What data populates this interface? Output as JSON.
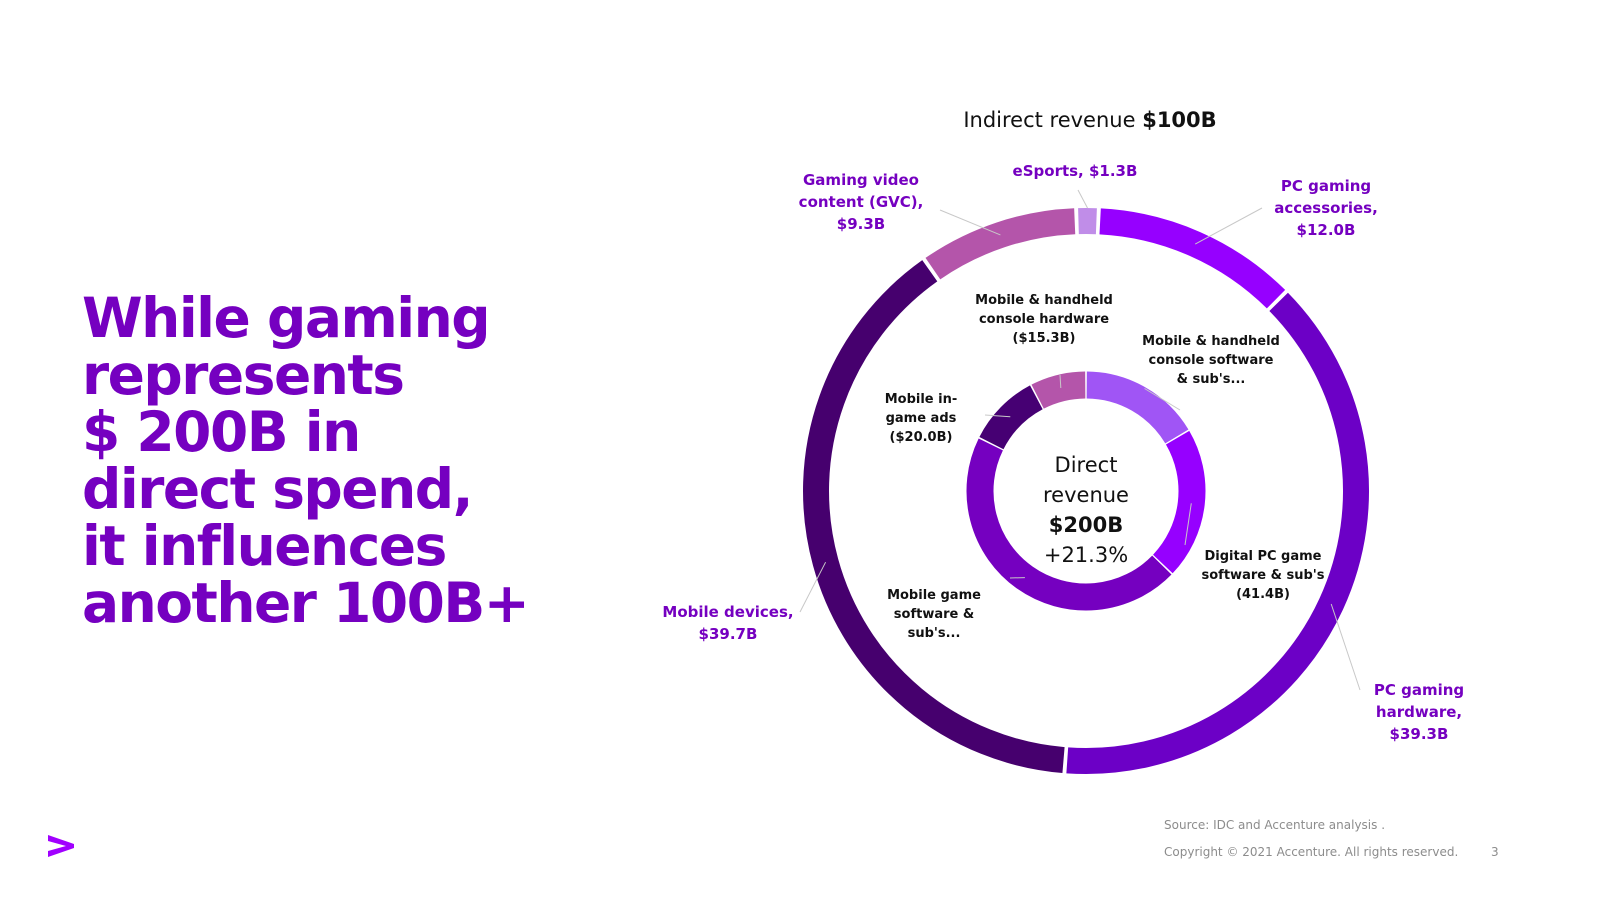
{
  "headline": {
    "lines": [
      "While gaming",
      "represents",
      "$ 200B in",
      "direct spend,",
      "it influences",
      "another 100B+"
    ]
  },
  "chart_data": {
    "type": "pie",
    "outer_ring": {
      "title_prefix": "Indirect revenue",
      "title_value": "$100B",
      "slices": [
        {
          "name": "eSports",
          "label": [
            "eSports, $1.3B"
          ],
          "value": 1.3,
          "color": "#c08de8"
        },
        {
          "name": "PC gaming accessories",
          "label": [
            "PC gaming",
            "accessories,",
            "$12.0B"
          ],
          "value": 12.0,
          "color": "#9600ff"
        },
        {
          "name": "PC gaming hardware",
          "label": [
            "PC gaming",
            "hardware,",
            "$39.3B"
          ],
          "value": 39.3,
          "color": "#6c00c6"
        },
        {
          "name": "Mobile devices",
          "label": [
            "Mobile devices,",
            "$39.7B"
          ],
          "value": 39.7,
          "color": "#46006e"
        },
        {
          "name": "Gaming video content (GVC)",
          "label": [
            "Gaming video",
            "content (GVC),",
            "$9.3B"
          ],
          "value": 9.3,
          "color": "#b455aa"
        }
      ]
    },
    "inner_ring": {
      "center_lines": [
        "Direct",
        "revenue"
      ],
      "center_value": "$200B",
      "center_growth": "+21.3%",
      "slices": [
        {
          "name": "Mobile & handheld console software & sub's",
          "label": [
            "Mobile & handheld",
            "console software",
            "& sub's..."
          ],
          "value": 33.0,
          "color": "#a055f5"
        },
        {
          "name": "Digital PC game software & sub's",
          "label": [
            "Digital PC game",
            "software & sub's",
            "(41.4B)"
          ],
          "value": 41.4,
          "color": "#9600ff"
        },
        {
          "name": "Mobile game software & sub's",
          "label": [
            "Mobile game",
            "software &",
            "sub's..."
          ],
          "value": 90.3,
          "color": "#7500c0"
        },
        {
          "name": "Mobile in-game ads",
          "label": [
            "Mobile in-",
            "game ads",
            "($20.0B)"
          ],
          "value": 20.0,
          "color": "#460073"
        },
        {
          "name": "Mobile & handheld console hardware",
          "label": [
            "Mobile & handheld",
            "console hardware",
            "($15.3B)"
          ],
          "value": 15.3,
          "color": "#b455aa"
        }
      ]
    }
  },
  "footer": {
    "source": "Source: IDC and Accenture analysis .",
    "copyright": "Copyright © 2021 Accenture. All rights reserved.",
    "page": "3"
  }
}
